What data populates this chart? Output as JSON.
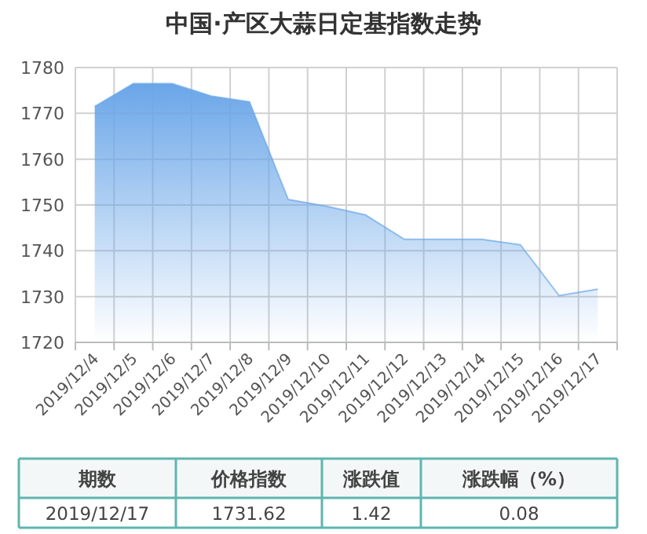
{
  "chart_data": [
    {
      "type": "area",
      "title": "中国·产区大蒜日定基指数走势",
      "categories": [
        "2019/12/4",
        "2019/12/5",
        "2019/12/6",
        "2019/12/7",
        "2019/12/8",
        "2019/12/9",
        "2019/12/10",
        "2019/12/11",
        "2019/12/12",
        "2019/12/13",
        "2019/12/14",
        "2019/12/15",
        "2019/12/16",
        "2019/12/17"
      ],
      "series": [
        {
          "color": "#6aa6e8",
          "values": [
            1771.5,
            1776.5,
            1776.5,
            1773.8,
            1772.5,
            1751.2,
            1749.7,
            1747.8,
            1742.5,
            1742.5,
            1742.5,
            1741.3,
            1730.2,
            1731.6
          ]
        }
      ],
      "ylim": [
        1720,
        1780
      ],
      "yticks": [
        1720,
        1730,
        1740,
        1750,
        1760,
        1770,
        1780
      ],
      "grid": true
    },
    {
      "type": "other",
      "annotations": [
        "期数",
        "价格指数",
        "涨跌值",
        "涨跌幅（%）",
        "2019/12/17",
        "1731.62",
        "1.42",
        "0.08"
      ]
    }
  ]
}
